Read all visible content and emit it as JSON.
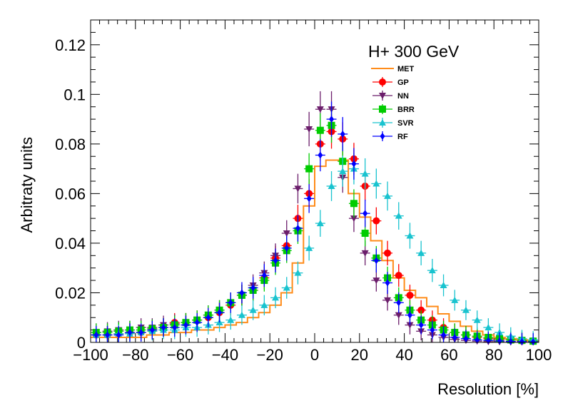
{
  "chart_data": {
    "type": "scatter",
    "title": "H+ 300 GeV",
    "xlabel": "Resolution [%]",
    "ylabel": "Arbitraty units",
    "xlim": [
      -100,
      100
    ],
    "ylim": [
      0,
      0.13
    ],
    "xticks": [
      -100,
      -80,
      -60,
      -40,
      -20,
      0,
      20,
      40,
      60,
      80,
      100
    ],
    "xtick_labels": [
      "−100",
      "−80",
      "−60",
      "−40",
      "−20",
      "0",
      "20",
      "40",
      "60",
      "80",
      "100"
    ],
    "yticks": [
      0,
      0.02,
      0.04,
      0.06,
      0.08,
      0.1,
      0.12
    ],
    "ytick_labels": [
      "0",
      "0.02",
      "0.04",
      "0.06",
      "0.08",
      "0.1",
      "0.12"
    ],
    "grid": false,
    "legend_position": "top-right",
    "bin_edges_note": "40 bins of width 5 from -100 to 100",
    "series": [
      {
        "name": "MET",
        "style": "histogram",
        "color": "#ff8c1a",
        "values": [
          0.002,
          0.002,
          0.002,
          0.002,
          0.002,
          0.003,
          0.003,
          0.004,
          0.004,
          0.005,
          0.005,
          0.006,
          0.007,
          0.008,
          0.01,
          0.012,
          0.015,
          0.02,
          0.032,
          0.055,
          0.071,
          0.0735,
          0.0735,
          0.06,
          0.0505,
          0.041,
          0.033,
          0.026,
          0.021,
          0.018,
          0.0145,
          0.0115,
          0.0085,
          0.0065,
          0.0045,
          0.003,
          0.002,
          0.0015,
          0.001,
          0.0005
        ]
      },
      {
        "name": "GP",
        "marker": "circle",
        "color": "#ff0000",
        "x": [
          -97.5,
          -92.5,
          -87.5,
          -82.5,
          -77.5,
          -72.5,
          -67.5,
          -62.5,
          -57.5,
          -52.5,
          -47.5,
          -42.5,
          -37.5,
          -32.5,
          -27.5,
          -22.5,
          -17.5,
          -12.5,
          -7.5,
          -2.5,
          2.5,
          7.5,
          12.5,
          17.5,
          22.5,
          27.5,
          32.5,
          37.5,
          42.5,
          47.5,
          52.5,
          57.5,
          62.5,
          67.5,
          72.5,
          77.5,
          82.5,
          87.5,
          92.5,
          97.5
        ],
        "values": [
          0.003,
          0.003,
          0.0035,
          0.004,
          0.004,
          0.005,
          0.006,
          0.008,
          0.008,
          0.009,
          0.01,
          0.012,
          0.015,
          0.019,
          0.021,
          0.026,
          0.034,
          0.039,
          0.05,
          0.06,
          0.08,
          0.085,
          0.082,
          0.074,
          0.063,
          0.049,
          0.036,
          0.027,
          0.019,
          0.013,
          0.009,
          0.006,
          0.004,
          0.003,
          0.002,
          0.0015,
          0.0012,
          0.001,
          0.0006,
          0.0004
        ]
      },
      {
        "name": "NN",
        "marker": "triangle-down",
        "color": "#6b1d6b",
        "x": [
          -97.5,
          -92.5,
          -87.5,
          -82.5,
          -77.5,
          -72.5,
          -67.5,
          -62.5,
          -57.5,
          -52.5,
          -47.5,
          -42.5,
          -37.5,
          -32.5,
          -27.5,
          -22.5,
          -17.5,
          -12.5,
          -7.5,
          -2.5,
          2.5,
          7.5,
          12.5,
          17.5,
          22.5,
          27.5,
          32.5,
          37.5,
          42.5,
          47.5,
          52.5,
          57.5,
          62.5,
          67.5,
          72.5,
          77.5,
          82.5,
          87.5,
          92.5,
          97.5
        ],
        "values": [
          0.004,
          0.0045,
          0.005,
          0.005,
          0.006,
          0.006,
          0.007,
          0.0075,
          0.008,
          0.009,
          0.011,
          0.013,
          0.016,
          0.019,
          0.023,
          0.028,
          0.035,
          0.044,
          0.062,
          0.086,
          0.094,
          0.094,
          0.0665,
          0.05,
          0.036,
          0.025,
          0.017,
          0.011,
          0.007,
          0.0045,
          0.003,
          0.002,
          0.0012,
          0.0008,
          0.0005,
          0.0003,
          0.0002,
          0.0001,
          0.0001,
          0.0001
        ]
      },
      {
        "name": "BRR",
        "marker": "square",
        "color": "#00cc00",
        "x": [
          -97.5,
          -92.5,
          -87.5,
          -82.5,
          -77.5,
          -72.5,
          -67.5,
          -62.5,
          -57.5,
          -52.5,
          -47.5,
          -42.5,
          -37.5,
          -32.5,
          -27.5,
          -22.5,
          -17.5,
          -12.5,
          -7.5,
          -2.5,
          2.5,
          7.5,
          12.5,
          17.5,
          22.5,
          27.5,
          32.5,
          37.5,
          42.5,
          47.5,
          52.5,
          57.5,
          62.5,
          67.5,
          72.5,
          77.5,
          82.5,
          87.5,
          92.5,
          97.5
        ],
        "values": [
          0.004,
          0.004,
          0.0045,
          0.005,
          0.005,
          0.0055,
          0.006,
          0.007,
          0.008,
          0.009,
          0.011,
          0.013,
          0.016,
          0.019,
          0.021,
          0.025,
          0.032,
          0.037,
          0.045,
          0.07,
          0.0855,
          0.0875,
          0.073,
          0.056,
          0.044,
          0.034,
          0.026,
          0.018,
          0.013,
          0.009,
          0.007,
          0.005,
          0.004,
          0.003,
          0.0025,
          0.002,
          0.0015,
          0.001,
          0.0008,
          0.0005
        ]
      },
      {
        "name": "SVR",
        "marker": "triangle-up",
        "color": "#19c3cf",
        "x": [
          -97.5,
          -92.5,
          -87.5,
          -82.5,
          -77.5,
          -72.5,
          -67.5,
          -62.5,
          -57.5,
          -52.5,
          -47.5,
          -42.5,
          -37.5,
          -32.5,
          -27.5,
          -22.5,
          -17.5,
          -12.5,
          -7.5,
          -2.5,
          2.5,
          7.5,
          12.5,
          17.5,
          22.5,
          27.5,
          32.5,
          37.5,
          42.5,
          47.5,
          52.5,
          57.5,
          62.5,
          67.5,
          72.5,
          77.5,
          82.5,
          87.5,
          92.5,
          97.5
        ],
        "values": [
          0.003,
          0.003,
          0.0035,
          0.0035,
          0.004,
          0.0045,
          0.005,
          0.005,
          0.006,
          0.006,
          0.007,
          0.008,
          0.009,
          0.011,
          0.013,
          0.015,
          0.018,
          0.022,
          0.028,
          0.038,
          0.048,
          0.063,
          0.069,
          0.07,
          0.068,
          0.064,
          0.059,
          0.051,
          0.043,
          0.036,
          0.029,
          0.023,
          0.017,
          0.013,
          0.009,
          0.006,
          0.004,
          0.0025,
          0.0015,
          0.001
        ]
      },
      {
        "name": "RF",
        "marker": "diamond",
        "color": "#0000ff",
        "x": [
          -97.5,
          -92.5,
          -87.5,
          -82.5,
          -77.5,
          -72.5,
          -67.5,
          -62.5,
          -57.5,
          -52.5,
          -47.5,
          -42.5,
          -37.5,
          -32.5,
          -27.5,
          -22.5,
          -17.5,
          -12.5,
          -7.5,
          -2.5,
          2.5,
          7.5,
          12.5,
          17.5,
          22.5,
          27.5,
          32.5,
          37.5,
          42.5,
          47.5,
          52.5,
          57.5,
          62.5,
          67.5,
          72.5,
          77.5,
          82.5,
          87.5,
          92.5,
          97.5
        ],
        "values": [
          0.003,
          0.003,
          0.003,
          0.004,
          0.004,
          0.005,
          0.006,
          0.006,
          0.007,
          0.008,
          0.01,
          0.012,
          0.016,
          0.02,
          0.022,
          0.027,
          0.033,
          0.038,
          0.046,
          0.058,
          0.0755,
          0.09,
          0.084,
          0.072,
          0.052,
          0.033,
          0.024,
          0.016,
          0.011,
          0.007,
          0.005,
          0.003,
          0.002,
          0.0015,
          0.001,
          0.0008,
          0.0006,
          0.0004,
          0.0003,
          0.0002
        ]
      }
    ]
  }
}
